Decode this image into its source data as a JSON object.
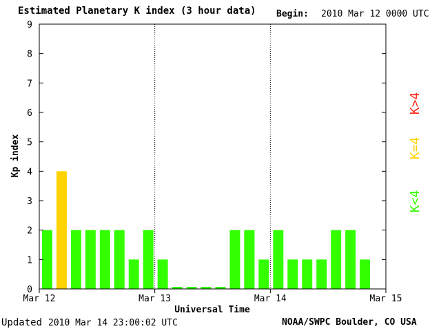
{
  "header": {
    "title": "Estimated Planetary K index (3 hour data)",
    "begin_label": "Begin:",
    "begin_value": "2010 Mar 12 0000 UTC"
  },
  "footer": {
    "updated_label": "Updated",
    "updated_value": "2010 Mar 14 23:00:02 UTC",
    "credit": "NOAA/SWPC Boulder, CO USA"
  },
  "legend": [
    {
      "label": "K>4",
      "color": "#ff2a1a"
    },
    {
      "label": "K=4",
      "color": "#ffd200"
    },
    {
      "label": "K<4",
      "color": "#33ff00"
    }
  ],
  "chart_data": {
    "type": "bar",
    "title": "Estimated Planetary K index (3 hour data)",
    "xlabel": "Universal Time",
    "ylabel": "Kp index",
    "ylim": [
      0,
      9
    ],
    "yticks": [
      "0",
      "1",
      "2",
      "3",
      "4",
      "5",
      "6",
      "7",
      "8",
      "9"
    ],
    "xtick_labels": [
      "Mar 12",
      "Mar 13",
      "Mar 14",
      "Mar 15"
    ],
    "interval_hours": 3,
    "values": [
      2,
      4,
      2,
      2,
      2,
      2,
      1,
      2,
      1,
      0,
      0,
      0,
      0,
      2,
      2,
      1,
      2,
      1,
      1,
      1,
      2,
      2,
      1
    ],
    "colors": {
      "below_4": "#33ff00",
      "equal_4": "#ffd200",
      "above_4": "#ff2a1a"
    },
    "day_separators": "dotted"
  }
}
